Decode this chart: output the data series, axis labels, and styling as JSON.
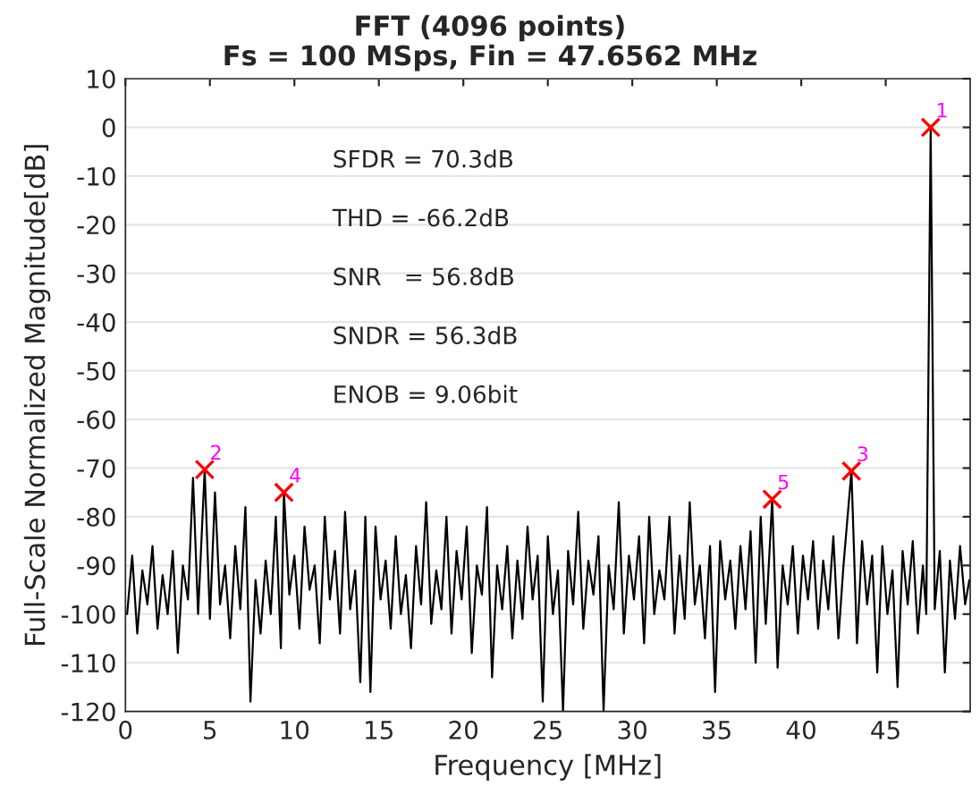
{
  "chart_data": {
    "type": "line",
    "title": "FFT (4096 points)",
    "subtitle": "Fs = 100 MSps, Fin = 47.6562 MHz",
    "xlabel": "Frequency [MHz]",
    "ylabel": "Full-Scale Normalized Magnitude[dB]",
    "xlim": [
      0,
      50
    ],
    "xticks": [
      0,
      5,
      10,
      15,
      20,
      25,
      30,
      35,
      40,
      45
    ],
    "ylim": [
      -120,
      10
    ],
    "yticks": [
      10,
      0,
      -10,
      -20,
      -30,
      -40,
      -50,
      -60,
      -70,
      -80,
      -90,
      -100,
      -110,
      -120
    ],
    "grid": "y",
    "legend": false,
    "series": [
      {
        "color": "#000000",
        "marker": "none",
        "line_style": "solid",
        "x": [
          0.1,
          0.4,
          0.7,
          1.0,
          1.3,
          1.6,
          1.9,
          2.2,
          2.5,
          2.8,
          3.1,
          3.4,
          3.7,
          4.0,
          4.3,
          4.69,
          5.0,
          5.3,
          5.6,
          5.9,
          6.2,
          6.5,
          6.8,
          7.1,
          7.4,
          7.7,
          8.0,
          8.3,
          8.6,
          8.9,
          9.2,
          9.38,
          9.7,
          10.0,
          10.3,
          10.6,
          10.9,
          11.2,
          11.5,
          11.8,
          12.1,
          12.4,
          12.7,
          13.0,
          13.3,
          13.6,
          13.9,
          14.2,
          14.5,
          14.8,
          15.1,
          15.4,
          15.7,
          16.0,
          16.3,
          16.6,
          16.9,
          17.2,
          17.5,
          17.8,
          18.1,
          18.4,
          18.7,
          19.0,
          19.3,
          19.6,
          19.9,
          20.2,
          20.5,
          20.8,
          21.1,
          21.4,
          21.7,
          22.0,
          22.3,
          22.6,
          22.9,
          23.2,
          23.5,
          23.8,
          24.1,
          24.4,
          24.7,
          25.0,
          25.3,
          25.6,
          25.9,
          26.2,
          26.5,
          26.8,
          27.1,
          27.4,
          27.7,
          28.0,
          28.3,
          28.6,
          28.9,
          29.2,
          29.5,
          29.8,
          30.1,
          30.4,
          30.7,
          31.0,
          31.3,
          31.6,
          31.9,
          32.2,
          32.5,
          32.8,
          33.1,
          33.4,
          33.7,
          34.0,
          34.3,
          34.6,
          34.9,
          35.2,
          35.5,
          35.8,
          36.1,
          36.4,
          36.7,
          37.0,
          37.3,
          37.6,
          37.9,
          38.28,
          38.6,
          38.9,
          39.2,
          39.5,
          39.8,
          40.1,
          40.4,
          40.7,
          41.0,
          41.3,
          41.6,
          41.9,
          42.2,
          42.5,
          42.97,
          43.3,
          43.6,
          43.9,
          44.2,
          44.5,
          44.8,
          45.1,
          45.4,
          45.7,
          46.0,
          46.3,
          46.6,
          46.9,
          47.2,
          47.4,
          47.66,
          47.9,
          48.2,
          48.5,
          48.8,
          49.1,
          49.4,
          49.7,
          49.95
        ],
        "values": [
          -100,
          -88,
          -104,
          -91,
          -98,
          -86,
          -103,
          -92,
          -100,
          -87,
          -108,
          -90,
          -97,
          -72,
          -100,
          -70.3,
          -101,
          -75,
          -98,
          -90,
          -105,
          -86,
          -99,
          -78,
          -118,
          -93,
          -104,
          -89,
          -100,
          -80,
          -107,
          -75,
          -96,
          -88,
          -103,
          -82,
          -95,
          -90,
          -106,
          -80,
          -97,
          -87,
          -104,
          -79,
          -99,
          -91,
          -114,
          -80,
          -116,
          -82,
          -97,
          -89,
          -103,
          -84,
          -100,
          -92,
          -107,
          -86,
          -98,
          -77,
          -102,
          -91,
          -99,
          -80,
          -104,
          -87,
          -97,
          -82,
          -108,
          -90,
          -96,
          -78,
          -113,
          -90,
          -99,
          -86,
          -105,
          -89,
          -101,
          -82,
          -97,
          -88,
          -118,
          -84,
          -100,
          -91,
          -120,
          -87,
          -98,
          -79,
          -103,
          -89,
          -96,
          -84,
          -120,
          -90,
          -99,
          -77,
          -104,
          -88,
          -97,
          -84,
          -106,
          -80,
          -100,
          -91,
          -97,
          -80,
          -104,
          -88,
          -101,
          -77,
          -98,
          -90,
          -105,
          -86,
          -116,
          -85,
          -97,
          -89,
          -103,
          -86,
          -99,
          -83,
          -110,
          -80,
          -102,
          -76.4,
          -111,
          -90,
          -98,
          -86,
          -104,
          -88,
          -97,
          -85,
          -103,
          -89,
          -99,
          -84,
          -105,
          -90,
          -70.6,
          -106,
          -85,
          -98,
          -88,
          -112,
          -86,
          -100,
          -91,
          -115,
          -87,
          -98,
          -85,
          -104,
          -90,
          -100,
          0,
          -99,
          -87,
          -112,
          -89,
          -101,
          -86,
          -98,
          -93
        ]
      },
      {
        "type": "scatter",
        "color": "#ff0000",
        "marker": "cross",
        "x": [
          47.66,
          4.69,
          42.97,
          9.38,
          38.28
        ],
        "values": [
          0,
          -70.3,
          -70.6,
          -75,
          -76.4
        ]
      }
    ],
    "annotations": [
      {
        "text": "1",
        "x": 47.66,
        "y": 0
      },
      {
        "text": "2",
        "x": 4.69,
        "y": -70.3
      },
      {
        "text": "3",
        "x": 42.97,
        "y": -70.6
      },
      {
        "text": "4",
        "x": 9.38,
        "y": -75
      },
      {
        "text": "5",
        "x": 38.28,
        "y": -76.4
      },
      "SFDR = 70.3dB",
      "THD = -66.2dB",
      "SNR   = 56.8dB",
      "SNDR = 56.3dB",
      "ENOB = 9.06bit"
    ]
  }
}
